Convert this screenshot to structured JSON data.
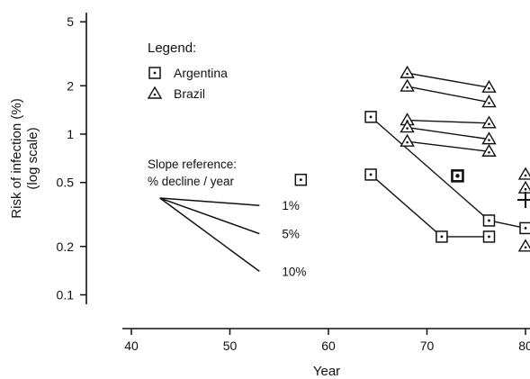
{
  "chart_data": {
    "type": "scatter",
    "xlabel": "Year",
    "ylabel": "Risk of infection (%)",
    "ylabel_sub": "(log scale)",
    "x_ticks": [
      {
        "value": 40,
        "label": "40"
      },
      {
        "value": 50,
        "label": "50"
      },
      {
        "value": 60,
        "label": "60"
      },
      {
        "value": 70,
        "label": "70"
      },
      {
        "value": 80,
        "label": "80"
      }
    ],
    "y_ticks": [
      {
        "value": 0.1,
        "label": "0.1"
      },
      {
        "value": 0.2,
        "label": "0.2"
      },
      {
        "value": 0.5,
        "label": "0.5"
      },
      {
        "value": 1,
        "label": "1"
      },
      {
        "value": 2,
        "label": "2"
      },
      {
        "value": 5,
        "label": "5"
      }
    ],
    "x_range": [
      38,
      85
    ],
    "y_range": [
      0.085,
      5.8
    ],
    "y_scale": "log",
    "grid": false,
    "legend": {
      "title": "Legend:",
      "position": "top-left",
      "entries": [
        {
          "marker": "square",
          "label": "Argentina"
        },
        {
          "marker": "triangle",
          "label": "Brazil"
        }
      ]
    },
    "series": [
      {
        "name": "Argentina",
        "marker": "square",
        "points": [
          {
            "x": 57.2,
            "y": 0.52
          },
          {
            "x": 64.3,
            "y": 1.28
          },
          {
            "x": 64.3,
            "y": 0.56
          },
          {
            "x": 71.5,
            "y": 0.23
          },
          {
            "x": 73.1,
            "y": 0.55,
            "bold": true
          },
          {
            "x": 76.3,
            "y": 0.29
          },
          {
            "x": 76.3,
            "y": 0.23
          },
          {
            "x": 80.0,
            "y": 0.26
          }
        ],
        "lines": [
          [
            [
              64.3,
              1.28
            ],
            [
              76.3,
              0.29
            ]
          ],
          [
            [
              76.3,
              0.29
            ],
            [
              80.0,
              0.26
            ]
          ],
          [
            [
              64.3,
              0.56
            ],
            [
              71.5,
              0.23
            ]
          ],
          [
            [
              71.5,
              0.23
            ],
            [
              76.3,
              0.23
            ]
          ]
        ]
      },
      {
        "name": "Brazil",
        "marker": "triangle",
        "points": [
          {
            "x": 68.0,
            "y": 2.4
          },
          {
            "x": 76.3,
            "y": 1.95
          },
          {
            "x": 68.0,
            "y": 1.98
          },
          {
            "x": 76.3,
            "y": 1.58
          },
          {
            "x": 68.0,
            "y": 1.22
          },
          {
            "x": 76.3,
            "y": 1.17
          },
          {
            "x": 68.0,
            "y": 1.1
          },
          {
            "x": 76.3,
            "y": 0.93
          },
          {
            "x": 68.0,
            "y": 0.9
          },
          {
            "x": 76.3,
            "y": 0.78
          },
          {
            "x": 80.0,
            "y": 0.56
          },
          {
            "x": 80.0,
            "y": 0.46
          },
          {
            "x": 80.0,
            "y": 0.2
          }
        ],
        "lines": [
          [
            [
              68.0,
              2.4
            ],
            [
              76.3,
              1.95
            ]
          ],
          [
            [
              68.0,
              1.98
            ],
            [
              76.3,
              1.58
            ]
          ],
          [
            [
              68.0,
              1.22
            ],
            [
              76.3,
              1.17
            ]
          ],
          [
            [
              68.0,
              1.1
            ],
            [
              76.3,
              0.93
            ]
          ],
          [
            [
              68.0,
              0.9
            ],
            [
              76.3,
              0.78
            ]
          ]
        ]
      }
    ],
    "plus_marker": {
      "x": 80.0,
      "y": 0.39
    },
    "slope_reference": {
      "title_line1": "Slope reference:",
      "title_line2": "% decline / year",
      "origin": {
        "x": 42.9,
        "y": 0.4
      },
      "lines": [
        {
          "label": "1%",
          "end": {
            "x": 53.0,
            "y": 0.36
          }
        },
        {
          "label": "5%",
          "end": {
            "x": 53.0,
            "y": 0.24
          }
        },
        {
          "label": "10%",
          "end": {
            "x": 53.0,
            "y": 0.14
          }
        }
      ]
    }
  }
}
